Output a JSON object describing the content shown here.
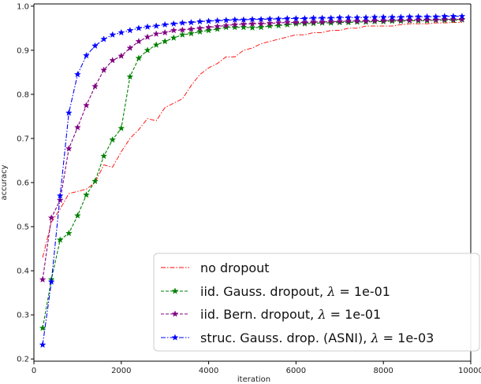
{
  "chart_data": {
    "type": "line",
    "title": "",
    "xlabel": "iteration",
    "ylabel": "accuracy",
    "xlim": [
      0,
      10000
    ],
    "ylim": [
      0.2,
      1.0
    ],
    "xticks": [
      0,
      2000,
      4000,
      6000,
      8000,
      10000
    ],
    "yticks": [
      0.2,
      0.3,
      0.4,
      0.5,
      0.6,
      0.7,
      0.8,
      0.9,
      1.0
    ],
    "grid": false,
    "legend_position": "bottom-right",
    "series": [
      {
        "name": "no dropout",
        "color": "#ff0000",
        "marker": "none",
        "style": "dashdot",
        "x": [
          200,
          400,
          600,
          800,
          1000,
          1200,
          1400,
          1600,
          1800,
          2000,
          2200,
          2400,
          2600,
          2800,
          3000,
          3200,
          3400,
          3600,
          3800,
          4000,
          4200,
          4400,
          4600,
          4800,
          5000,
          5200,
          5400,
          5600,
          5800,
          6000,
          6200,
          6400,
          6600,
          6800,
          7000,
          7200,
          7400,
          7600,
          7800,
          8000,
          8200,
          8400,
          8600,
          8800,
          9000,
          9200,
          9400,
          9600,
          9800
        ],
        "y": [
          0.43,
          0.51,
          0.54,
          0.575,
          0.58,
          0.585,
          0.6,
          0.64,
          0.635,
          0.67,
          0.7,
          0.72,
          0.745,
          0.74,
          0.77,
          0.78,
          0.79,
          0.82,
          0.845,
          0.86,
          0.87,
          0.885,
          0.885,
          0.9,
          0.905,
          0.915,
          0.92,
          0.925,
          0.93,
          0.935,
          0.935,
          0.94,
          0.94,
          0.945,
          0.945,
          0.95,
          0.95,
          0.955,
          0.955,
          0.955,
          0.955,
          0.958,
          0.96,
          0.96,
          0.96,
          0.962,
          0.962,
          0.963,
          0.963
        ]
      },
      {
        "name": "iid. Gauss. dropout, λ = 1e-01",
        "color": "#008000",
        "marker": "star",
        "style": "dashed",
        "x": [
          200,
          400,
          600,
          800,
          1000,
          1200,
          1400,
          1600,
          1800,
          2000,
          2200,
          2400,
          2600,
          2800,
          3000,
          3200,
          3400,
          3600,
          3800,
          4000,
          4200,
          4400,
          4600,
          4800,
          5000,
          5200,
          5400,
          5600,
          5800,
          6000,
          6200,
          6400,
          6600,
          6800,
          7000,
          7200,
          7400,
          7600,
          7800,
          8000,
          8200,
          8400,
          8600,
          8800,
          9000,
          9200,
          9400,
          9600,
          9800
        ],
        "y": [
          0.27,
          0.38,
          0.47,
          0.485,
          0.525,
          0.572,
          0.603,
          0.66,
          0.697,
          0.723,
          0.84,
          0.882,
          0.9,
          0.912,
          0.92,
          0.928,
          0.935,
          0.938,
          0.942,
          0.945,
          0.948,
          0.952,
          0.952,
          0.952,
          0.951,
          0.952,
          0.955,
          0.956,
          0.958,
          0.96,
          0.96,
          0.961,
          0.962,
          0.962,
          0.963,
          0.963,
          0.964,
          0.964,
          0.965,
          0.965,
          0.966,
          0.966,
          0.967,
          0.967,
          0.967,
          0.968,
          0.968,
          0.968,
          0.969
        ]
      },
      {
        "name": "iid. Bern. dropout, λ = 1e-01",
        "color": "#800080",
        "marker": "star",
        "style": "dashed",
        "x": [
          200,
          400,
          600,
          800,
          1000,
          1200,
          1400,
          1600,
          1800,
          2000,
          2200,
          2400,
          2600,
          2800,
          3000,
          3200,
          3400,
          3600,
          3800,
          4000,
          4200,
          4400,
          4600,
          4800,
          5000,
          5200,
          5400,
          5600,
          5800,
          6000,
          6200,
          6400,
          6600,
          6800,
          7000,
          7200,
          7400,
          7600,
          7800,
          8000,
          8200,
          8400,
          8600,
          8800,
          9000,
          9200,
          9400,
          9600,
          9800
        ],
        "y": [
          0.38,
          0.52,
          0.56,
          0.677,
          0.725,
          0.775,
          0.818,
          0.855,
          0.877,
          0.887,
          0.905,
          0.92,
          0.93,
          0.937,
          0.94,
          0.945,
          0.946,
          0.948,
          0.95,
          0.952,
          0.954,
          0.956,
          0.958,
          0.959,
          0.96,
          0.96,
          0.961,
          0.962,
          0.963,
          0.963,
          0.963,
          0.964,
          0.964,
          0.965,
          0.965,
          0.966,
          0.966,
          0.966,
          0.967,
          0.967,
          0.968,
          0.968,
          0.968,
          0.969,
          0.969,
          0.969,
          0.97,
          0.97,
          0.97
        ]
      },
      {
        "name": "struc. Gauss. drop. (ASNI), λ = 1e-03",
        "color": "#0000ff",
        "marker": "star",
        "style": "dashdot",
        "x": [
          200,
          400,
          600,
          800,
          1000,
          1200,
          1400,
          1600,
          1800,
          2000,
          2200,
          2400,
          2600,
          2800,
          3000,
          3200,
          3400,
          3600,
          3800,
          4000,
          4200,
          4400,
          4600,
          4800,
          5000,
          5200,
          5400,
          5600,
          5800,
          6000,
          6200,
          6400,
          6600,
          6800,
          7000,
          7200,
          7400,
          7600,
          7800,
          8000,
          8200,
          8400,
          8600,
          8800,
          9000,
          9200,
          9400,
          9600,
          9800
        ],
        "y": [
          0.232,
          0.375,
          0.57,
          0.758,
          0.845,
          0.888,
          0.91,
          0.925,
          0.935,
          0.94,
          0.945,
          0.95,
          0.953,
          0.955,
          0.958,
          0.96,
          0.962,
          0.963,
          0.965,
          0.966,
          0.967,
          0.968,
          0.969,
          0.969,
          0.97,
          0.97,
          0.971,
          0.971,
          0.972,
          0.972,
          0.972,
          0.973,
          0.973,
          0.973,
          0.974,
          0.974,
          0.974,
          0.974,
          0.975,
          0.975,
          0.975,
          0.975,
          0.976,
          0.976,
          0.976,
          0.976,
          0.977,
          0.977,
          0.977
        ]
      }
    ]
  },
  "legend": {
    "items": [
      {
        "text": "no dropout",
        "lambda_value": ""
      },
      {
        "text": "iid. Gauss. dropout, ",
        "lambda_value": "1e-01"
      },
      {
        "text": "iid. Bern. dropout, ",
        "lambda_value": "1e-01"
      },
      {
        "text": "struc. Gauss. drop. (ASNI), ",
        "lambda_value": "1e-03"
      }
    ],
    "lambda_symbol": "λ",
    "equals": " = "
  }
}
